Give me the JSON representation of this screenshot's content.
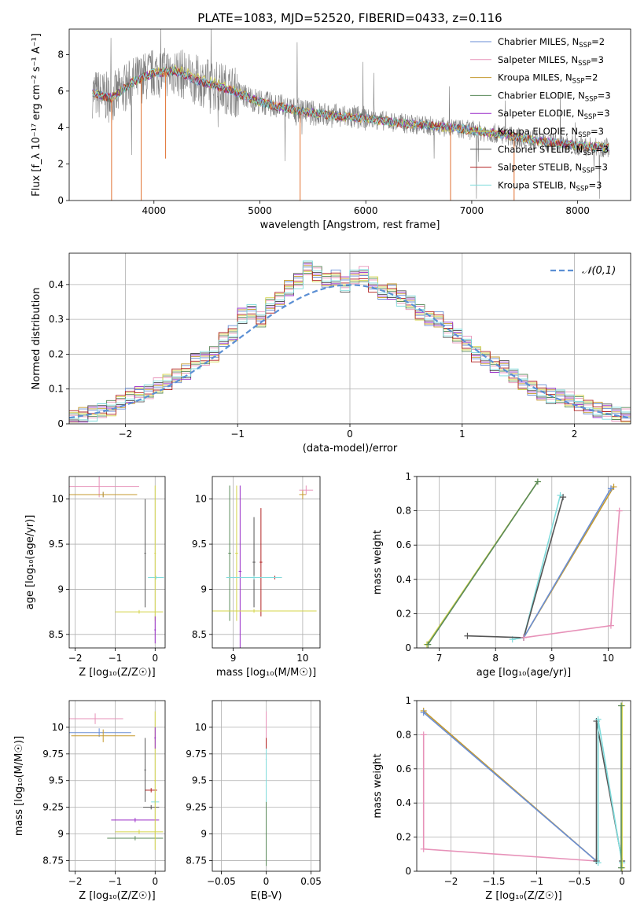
{
  "title": "PLATE=1083, MJD=52520, FIBERID=0433, z=0.116",
  "colors": [
    "#6a8ed4",
    "#e792b9",
    "#c59a2e",
    "#5a8a5a",
    "#9a2dc8",
    "#d4d44a",
    "#555555",
    "#b22222",
    "#7fdcdc"
  ],
  "chart_data": [
    {
      "id": "spectrum",
      "type": "line",
      "xlabel": "wavelength [Angstrom, rest frame]",
      "ylabel": "Flux [f_λ 10⁻¹⁷ erg cm⁻² s⁻¹ A⁻¹]",
      "xlim": [
        3200,
        8500
      ],
      "ylim": [
        0,
        9.4
      ],
      "xticks": [
        4000,
        5000,
        6000,
        7000,
        8000
      ],
      "yticks": [
        0,
        2,
        4,
        6,
        8
      ],
      "legend_position": "upper right",
      "legend": [
        {
          "base": "Chabrier MILES, N",
          "sub": "SSP",
          "tail": "=2"
        },
        {
          "base": "Salpeter MILES, N",
          "sub": "SSP",
          "tail": "=3"
        },
        {
          "base": "Kroupa MILES, N",
          "sub": "SSP",
          "tail": "=2"
        },
        {
          "base": "Chabrier ELODIE, N",
          "sub": "SSP",
          "tail": "=3"
        },
        {
          "base": "Salpeter ELODIE, N",
          "sub": "SSP",
          "tail": "=3"
        },
        {
          "base": "Kroupa ELODIE, N",
          "sub": "SSP",
          "tail": "=3"
        },
        {
          "base": "Chabrier STELIB, N",
          "sub": "SSP",
          "tail": "=3"
        },
        {
          "base": "Salpeter STELIB, N",
          "sub": "SSP",
          "tail": "=3"
        },
        {
          "base": "Kroupa STELIB, N",
          "sub": "SSP",
          "tail": "=3"
        }
      ],
      "continuum": {
        "x": [
          3420,
          3600,
          3800,
          4000,
          4200,
          4400,
          4700,
          5000,
          5300,
          5600,
          6000,
          6400,
          6800,
          7200,
          7600,
          8000,
          8300
        ],
        "y": [
          5.9,
          5.6,
          6.5,
          7.0,
          7.1,
          6.6,
          6.1,
          5.4,
          5.0,
          4.7,
          4.5,
          4.2,
          4.0,
          3.7,
          3.3,
          3.0,
          2.9
        ]
      }
    },
    {
      "id": "residuals",
      "type": "step",
      "xlabel": "(data-model)/error",
      "ylabel": "Normed distribution",
      "xlim": [
        -2.5,
        2.5
      ],
      "ylim": [
        0,
        0.49
      ],
      "xticks": [
        -2,
        -1,
        0,
        1,
        2
      ],
      "yticks": [
        0.0,
        0.1,
        0.2,
        0.3,
        0.4
      ],
      "legend": "𝒩(0,1)",
      "bin_edges_step": 0.1,
      "hist": [
        0.02,
        0.025,
        0.03,
        0.04,
        0.045,
        0.06,
        0.08,
        0.085,
        0.09,
        0.11,
        0.12,
        0.14,
        0.15,
        0.18,
        0.19,
        0.2,
        0.24,
        0.26,
        0.31,
        0.32,
        0.3,
        0.34,
        0.36,
        0.39,
        0.41,
        0.45,
        0.43,
        0.41,
        0.42,
        0.4,
        0.42,
        0.43,
        0.4,
        0.38,
        0.38,
        0.36,
        0.35,
        0.32,
        0.3,
        0.3,
        0.27,
        0.25,
        0.23,
        0.2,
        0.19,
        0.17,
        0.16,
        0.14,
        0.12,
        0.1,
        0.09,
        0.08,
        0.075,
        0.07,
        0.06,
        0.05,
        0.04,
        0.035,
        0.03,
        0.025
      ]
    },
    {
      "id": "age-vs-Z",
      "type": "errorbar",
      "xlabel": "Z [log₁₀(Z/Z☉)]",
      "ylabel": "age  [log₁₀(age/yr)]",
      "xlim": [
        -2.15,
        0.25
      ],
      "ylim": [
        8.35,
        10.25
      ],
      "xticks": [
        -2,
        -1,
        0
      ],
      "yticks": [
        8.5,
        9.0,
        9.5,
        10.0
      ],
      "points": [
        {
          "x": -1.3,
          "y": 10.05,
          "xerr": 0.8,
          "yerr": 0.03,
          "c": 0
        },
        {
          "x": -1.4,
          "y": 10.14,
          "xerr": 1.0,
          "yerr": 0.12,
          "c": 1
        },
        {
          "x": -1.3,
          "y": 10.05,
          "xerr": 0.85,
          "yerr": 0.03,
          "c": 2
        },
        {
          "x": -0.25,
          "y": 9.4,
          "xerr": 0.02,
          "yerr": 0.6,
          "c": 6
        },
        {
          "x": 0.02,
          "y": 9.13,
          "xerr": 0.2,
          "yerr": 0.02,
          "c": 8
        },
        {
          "x": 0.0,
          "y": 9.4,
          "xerr": 0.02,
          "yerr": 0.75,
          "c": 5
        },
        {
          "x": -0.4,
          "y": 8.75,
          "xerr": 0.6,
          "yerr": 0.02,
          "c": 5
        },
        {
          "x": 0.0,
          "y": 8.55,
          "xerr": 0.02,
          "yerr": 0.15,
          "c": 4
        }
      ]
    },
    {
      "id": "age-vs-mass",
      "type": "errorbar",
      "xlabel": "mass [log₁₀(M/M☉)]",
      "ylabel": "",
      "xlim": [
        8.7,
        10.25
      ],
      "ylim": [
        8.35,
        10.25
      ],
      "xticks": [
        9,
        10
      ],
      "yticks": [
        8.5,
        9.0,
        9.5,
        10.0
      ],
      "points": [
        {
          "x": 8.95,
          "y": 9.4,
          "xerr": 0.02,
          "yerr": 0.75,
          "c": 3
        },
        {
          "x": 9.05,
          "y": 9.4,
          "xerr": 0.02,
          "yerr": 0.75,
          "c": 5
        },
        {
          "x": 9.1,
          "y": 9.2,
          "xerr": 0.02,
          "yerr": 0.95,
          "c": 4
        },
        {
          "x": 9.4,
          "y": 9.3,
          "xerr": 0.02,
          "yerr": 0.6,
          "c": 7
        },
        {
          "x": 9.3,
          "y": 9.3,
          "xerr": 0.02,
          "yerr": 0.5,
          "c": 6
        },
        {
          "x": 9.6,
          "y": 9.13,
          "xerr": 0.1,
          "yerr": 0.02,
          "c": 7
        },
        {
          "x": 9.3,
          "y": 9.13,
          "xerr": 0.4,
          "yerr": 0.02,
          "c": 8
        },
        {
          "x": 9.3,
          "y": 8.76,
          "xerr": 0.9,
          "yerr": 0.02,
          "c": 5
        },
        {
          "x": 10.0,
          "y": 10.05,
          "xerr": 0.05,
          "yerr": 0.05,
          "c": 2
        },
        {
          "x": 10.05,
          "y": 10.1,
          "xerr": 0.1,
          "yerr": 0.05,
          "c": 1
        }
      ]
    },
    {
      "id": "mass-weight-vs-age",
      "type": "line",
      "xlabel": "age  [log₁₀(age/yr)]",
      "ylabel": "mass weight",
      "xlim": [
        6.6,
        10.4
      ],
      "ylim": [
        0,
        1.0
      ],
      "xticks": [
        7,
        8,
        9,
        10
      ],
      "yticks": [
        0.0,
        0.2,
        0.4,
        0.6,
        0.8,
        1.0
      ],
      "series": [
        {
          "c": 5,
          "x": [
            6.78,
            8.75
          ],
          "y": [
            0.02,
            0.97
          ]
        },
        {
          "c": 3,
          "x": [
            6.8,
            8.75
          ],
          "y": [
            0.02,
            0.97
          ]
        },
        {
          "c": 8,
          "x": [
            8.3,
            8.5,
            9.15
          ],
          "y": [
            0.05,
            0.06,
            0.89
          ]
        },
        {
          "c": 6,
          "x": [
            7.5,
            8.5,
            9.2
          ],
          "y": [
            0.07,
            0.06,
            0.88
          ]
        },
        {
          "c": 2,
          "x": [
            8.5,
            10.1
          ],
          "y": [
            0.06,
            0.94
          ]
        },
        {
          "c": 0,
          "x": [
            8.5,
            10.05
          ],
          "y": [
            0.06,
            0.93
          ]
        },
        {
          "c": 1,
          "x": [
            8.5,
            10.05,
            10.2
          ],
          "y": [
            0.06,
            0.13,
            0.8
          ]
        }
      ]
    },
    {
      "id": "mass-vs-Z",
      "type": "errorbar",
      "xlabel": "Z [log₁₀(Z/Z☉)]",
      "ylabel": "mass [log₁₀(M/M☉)]",
      "xlim": [
        -2.15,
        0.25
      ],
      "ylim": [
        8.65,
        10.25
      ],
      "xticks": [
        -2,
        -1,
        0
      ],
      "yticks": [
        8.75,
        9.0,
        9.25,
        9.5,
        9.75,
        10.0
      ],
      "points": [
        {
          "x": -1.5,
          "y": 10.08,
          "xerr": 0.7,
          "yerr": 0.05,
          "c": 1
        },
        {
          "x": -1.4,
          "y": 9.95,
          "xerr": 0.8,
          "yerr": 0.04,
          "c": 0
        },
        {
          "x": -1.3,
          "y": 9.92,
          "xerr": 0.8,
          "yerr": 0.06,
          "c": 2
        },
        {
          "x": -0.25,
          "y": 9.6,
          "xerr": 0.02,
          "yerr": 0.3,
          "c": 6
        },
        {
          "x": -0.1,
          "y": 9.41,
          "xerr": 0.15,
          "yerr": 0.02,
          "c": 7
        },
        {
          "x": -0.1,
          "y": 9.25,
          "xerr": 0.2,
          "yerr": 0.02,
          "c": 6
        },
        {
          "x": 0.0,
          "y": 9.3,
          "xerr": 0.1,
          "yerr": 0.02,
          "c": 8
        },
        {
          "x": -0.5,
          "y": 9.13,
          "xerr": 0.6,
          "yerr": 0.02,
          "c": 4
        },
        {
          "x": -0.4,
          "y": 9.02,
          "xerr": 0.6,
          "yerr": 0.02,
          "c": 5
        },
        {
          "x": -0.5,
          "y": 8.96,
          "xerr": 0.7,
          "yerr": 0.02,
          "c": 3
        },
        {
          "x": 0.0,
          "y": 9.5,
          "xerr": 0.02,
          "yerr": 0.65,
          "c": 5
        },
        {
          "x": 0.0,
          "y": 9.9,
          "xerr": 0.02,
          "yerr": 0.1,
          "c": 4
        }
      ]
    },
    {
      "id": "mass-vs-ebv",
      "type": "errorbar",
      "xlabel": "E(B-V)",
      "ylabel": "",
      "xlim": [
        -0.06,
        0.06
      ],
      "ylim": [
        8.65,
        10.25
      ],
      "xticks": [
        -0.05,
        0.0,
        0.05
      ],
      "yticks": [
        8.75,
        9.0,
        9.25,
        9.5,
        9.75,
        10.0
      ],
      "points": [
        {
          "x": 0.0,
          "y": 9.45,
          "xerr": 0.0005,
          "yerr": 0.65,
          "c": 5
        },
        {
          "x": 0.0,
          "y": 9.9,
          "xerr": 0.0005,
          "yerr": 0.25,
          "c": 1
        },
        {
          "x": 0.0,
          "y": 9.7,
          "xerr": 0.0005,
          "yerr": 0.2,
          "c": 7
        },
        {
          "x": 0.0,
          "y": 9.3,
          "xerr": 0.0005,
          "yerr": 0.5,
          "c": 8
        },
        {
          "x": 0.0,
          "y": 9.0,
          "xerr": 0.0005,
          "yerr": 0.3,
          "c": 3
        }
      ]
    },
    {
      "id": "mass-weight-vs-Z",
      "type": "line",
      "xlabel": "Z [log₁₀(Z/Z☉)]",
      "ylabel": "mass weight",
      "xlim": [
        -2.4,
        0.1
      ],
      "ylim": [
        0,
        1.0
      ],
      "xticks": [
        -2.0,
        -1.5,
        -1.0,
        -0.5,
        0.0
      ],
      "yticks": [
        0.0,
        0.2,
        0.4,
        0.6,
        0.8,
        1.0
      ],
      "series": [
        {
          "c": 2,
          "x": [
            -2.32,
            -0.3
          ],
          "y": [
            0.94,
            0.06
          ]
        },
        {
          "c": 0,
          "x": [
            -2.32,
            -0.3
          ],
          "y": [
            0.93,
            0.06
          ]
        },
        {
          "c": 1,
          "x": [
            -2.32,
            -2.32,
            -0.3
          ],
          "y": [
            0.8,
            0.13,
            0.06
          ]
        },
        {
          "c": 6,
          "x": [
            -0.3,
            -0.3,
            0.0
          ],
          "y": [
            0.06,
            0.88,
            0.06
          ]
        },
        {
          "c": 8,
          "x": [
            -0.28,
            -0.28,
            0.0
          ],
          "y": [
            0.05,
            0.89,
            0.05
          ]
        },
        {
          "c": 5,
          "x": [
            0.0,
            0.0
          ],
          "y": [
            0.02,
            0.97
          ]
        },
        {
          "c": 3,
          "x": [
            -0.01,
            -0.01
          ],
          "y": [
            0.02,
            0.97
          ]
        }
      ]
    }
  ]
}
